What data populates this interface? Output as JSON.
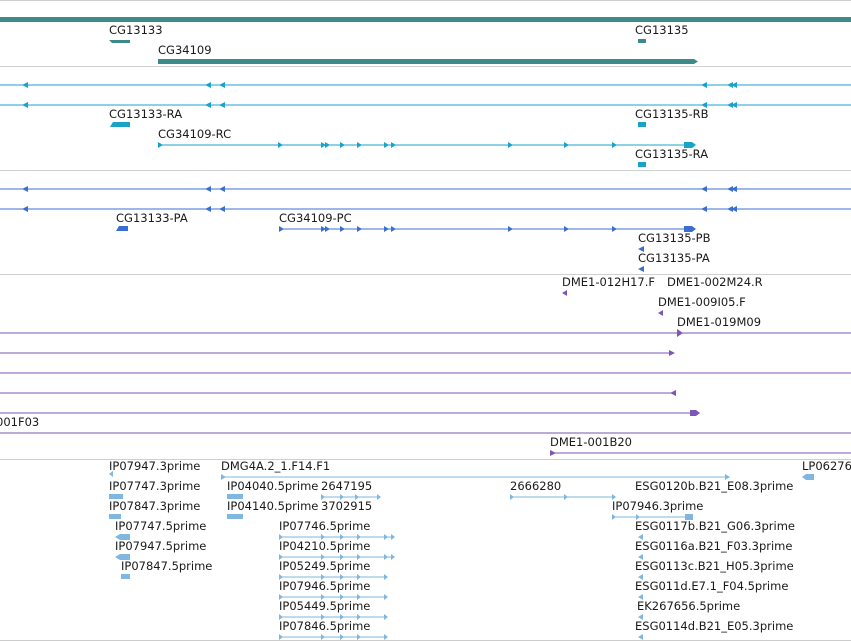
{
  "colors": {
    "gene": "#3d8a8a",
    "mrna": "#1aa3c8",
    "protein": "#3a6fd0",
    "clone": "#7e56b3",
    "est": "#7fb7e0",
    "divider": "#cfcfcf"
  },
  "tracks": {
    "genes": {
      "labels": [
        "CG13133",
        "CG13135",
        "CG34109"
      ]
    },
    "transcripts": {
      "labels": [
        "CG13133-RA",
        "CG13135-RB",
        "CG34109-RC",
        "CG13135-RA"
      ]
    },
    "proteins": {
      "labels": [
        "CG13133-PA",
        "CG34109-PC",
        "CG13135-PB",
        "CG13135-PA"
      ]
    },
    "clones": {
      "labels": [
        "DME1-012H17.F",
        "DME1-002M24.R",
        "DME1-009I05.F",
        "DME1-019M09",
        "001F03",
        "DME1-001B20"
      ]
    },
    "ests": {
      "labels": [
        "IP07947.3prime",
        "DMG4A.2_1.F14.F1",
        "LP06276",
        "IP07747.3prime",
        "IP04040.5prime",
        "2647195",
        "2666280",
        "ESG0120b.B21_E08.3prime",
        "IP07847.3prime",
        "IP04140.5prime",
        "3702915",
        "IP07946.3prime",
        "IP07747.5prime",
        "IP07746.5prime",
        "ESG0117b.B21_G06.3prime",
        "IP07947.5prime",
        "IP04210.5prime",
        "ESG0116a.B21_F03.3prime",
        "IP07847.5prime",
        "IP05249.5prime",
        "ESG0113c.B21_H05.3prime",
        "IP07946.5prime",
        "ESG011d.E7.1_F04.5prime",
        "IP05449.5prime",
        "EK267656.5prime",
        "IP07846.5prime",
        "ESG0114d.B21_E05.3prime"
      ]
    }
  }
}
